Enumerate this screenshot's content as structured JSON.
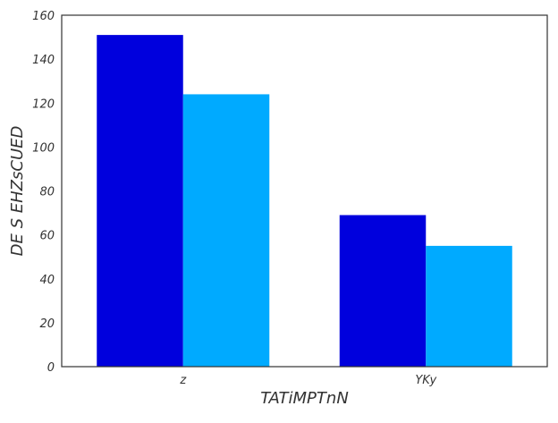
{
  "chart_data": {
    "type": "bar",
    "title": "",
    "xlabel": "TATiMPTnN",
    "ylabel": "DE S EHZsCUED",
    "categories": [
      "z",
      "YKy"
    ],
    "series": [
      {
        "values": [
          151,
          69
        ],
        "color": "#0000dd"
      },
      {
        "values": [
          124,
          55
        ],
        "color": "#00aaff"
      }
    ],
    "ylim": [
      0,
      160
    ],
    "yticks": [
      0,
      20,
      40,
      60,
      80,
      100,
      120,
      140,
      160
    ],
    "grid": false,
    "legend": "none"
  }
}
